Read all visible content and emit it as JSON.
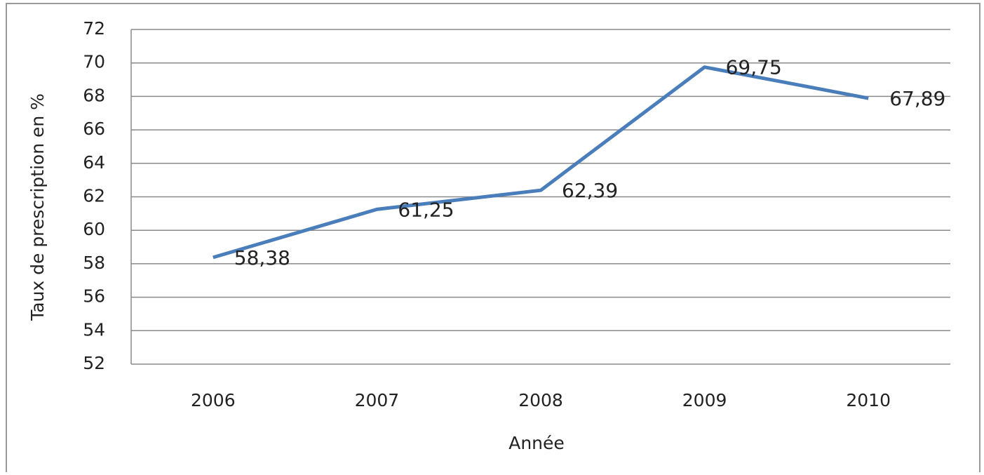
{
  "chart_data": {
    "type": "line",
    "x_label": "Année",
    "y_label": "Taux de prescription en %",
    "categories": [
      "2006",
      "2007",
      "2008",
      "2009",
      "2010"
    ],
    "series": [
      {
        "name": "Taux de prescription",
        "color": "#4a7ebb",
        "values": [
          58.38,
          61.25,
          62.39,
          69.75,
          67.89
        ],
        "value_labels": [
          "58,38",
          "61,25",
          "62,39",
          "69,75",
          "67,89"
        ]
      }
    ],
    "ylim": [
      52,
      72
    ],
    "yticks": [
      52,
      54,
      56,
      58,
      60,
      62,
      64,
      66,
      68,
      70,
      72
    ],
    "grid": true
  }
}
